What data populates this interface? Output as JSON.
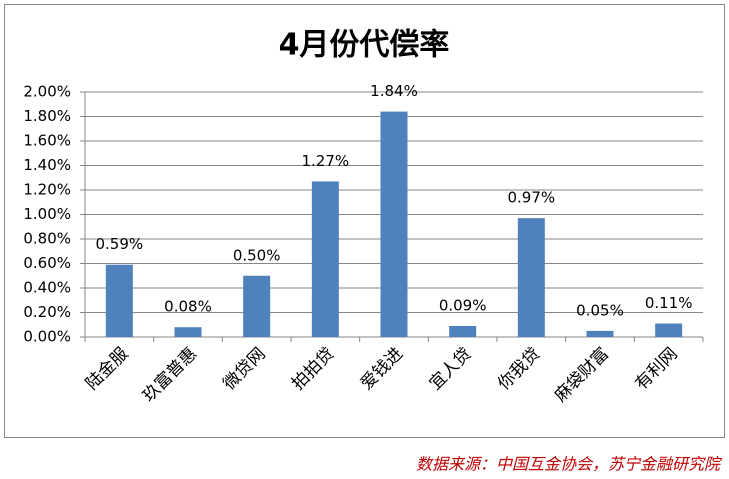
{
  "chart_data": {
    "type": "bar",
    "title": "4月份代偿率",
    "categories": [
      "陆金服",
      "玖富普惠",
      "微贷网",
      "拍拍贷",
      "爱钱进",
      "宜人贷",
      "你我贷",
      "麻袋财富",
      "有利网"
    ],
    "values": [
      0.59,
      0.08,
      0.5,
      1.27,
      1.84,
      0.09,
      0.97,
      0.05,
      0.11
    ],
    "value_labels": [
      "0.59%",
      "0.08%",
      "0.50%",
      "1.27%",
      "1.84%",
      "0.09%",
      "0.97%",
      "0.05%",
      "0.11%"
    ],
    "color": "#4f81bd",
    "ylim": [
      0,
      2
    ],
    "yticks": [
      {
        "value": 0,
        "label": "0.00%"
      },
      {
        "value": 0.2,
        "label": "0.20%"
      },
      {
        "value": 0.4,
        "label": "0.40%"
      },
      {
        "value": 0.6,
        "label": "0.60%"
      },
      {
        "value": 0.8,
        "label": "0.80%"
      },
      {
        "value": 1.0,
        "label": "1.00%"
      },
      {
        "value": 1.2,
        "label": "1.20%"
      },
      {
        "value": 1.4,
        "label": "1.40%"
      },
      {
        "value": 1.6,
        "label": "1.60%"
      },
      {
        "value": 1.8,
        "label": "1.80%"
      },
      {
        "value": 2.0,
        "label": "2.00%"
      }
    ],
    "grid": true,
    "source": "数据来源：中国互金协会，苏宁金融研究院"
  }
}
